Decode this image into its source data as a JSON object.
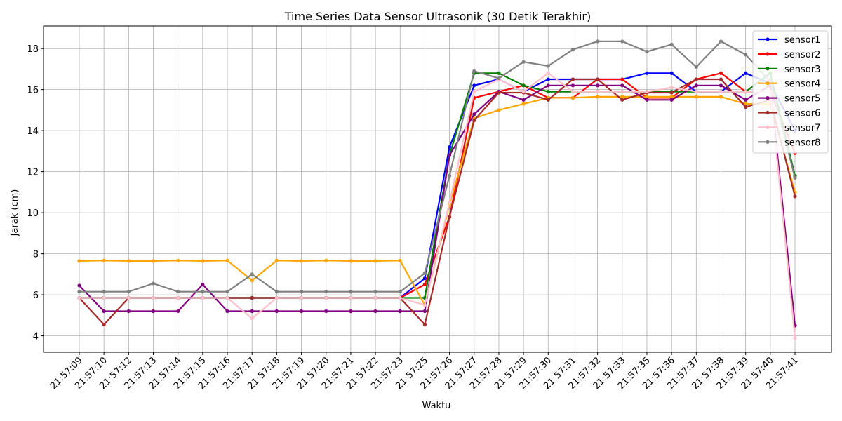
{
  "chart_data": {
    "type": "line",
    "title": "Time Series Data Sensor Ultrasonik (30 Detik Terakhir)",
    "xlabel": "Waktu",
    "ylabel": "Jarak (cm)",
    "ylim": [
      3.2,
      19.1
    ],
    "yticks": [
      4,
      6,
      8,
      10,
      12,
      14,
      16,
      18
    ],
    "grid": true,
    "legend": "top-right",
    "categories": [
      "21:57:09",
      "21:57:10",
      "21:57:12",
      "21:57:13",
      "21:57:14",
      "21:57:15",
      "21:57:16",
      "21:57:17",
      "21:57:18",
      "21:57:19",
      "21:57:20",
      "21:57:21",
      "21:57:22",
      "21:57:23",
      "21:57:25",
      "21:57:26",
      "21:57:27",
      "21:57:28",
      "21:57:29",
      "21:57:30",
      "21:57:31",
      "21:57:32",
      "21:57:33",
      "21:57:35",
      "21:57:36",
      "21:57:37",
      "21:57:38",
      "21:57:39",
      "21:57:40",
      "21:57:41"
    ],
    "series": [
      {
        "name": "sensor1",
        "color": "#0000ff",
        "values": [
          5.85,
          5.85,
          5.85,
          5.85,
          5.85,
          5.85,
          5.85,
          5.85,
          5.85,
          5.85,
          5.85,
          5.85,
          5.85,
          5.85,
          6.8,
          13.2,
          16.2,
          16.5,
          15.9,
          16.5,
          16.5,
          16.5,
          16.5,
          16.8,
          16.8,
          15.9,
          15.9,
          16.8,
          16.3,
          14.0
        ]
      },
      {
        "name": "sensor2",
        "color": "#ff0000",
        "values": [
          5.85,
          5.85,
          5.85,
          5.85,
          5.85,
          5.85,
          5.85,
          5.85,
          5.85,
          5.85,
          5.85,
          5.85,
          5.85,
          5.85,
          6.5,
          9.8,
          15.6,
          15.9,
          16.2,
          15.6,
          15.6,
          16.5,
          16.5,
          15.6,
          15.6,
          16.5,
          16.8,
          15.9,
          15.9,
          12.9
        ]
      },
      {
        "name": "sensor3",
        "color": "#008000",
        "values": [
          5.85,
          5.85,
          5.85,
          5.85,
          5.85,
          5.85,
          5.85,
          5.85,
          5.85,
          5.85,
          5.85,
          5.85,
          5.85,
          5.85,
          5.85,
          12.8,
          16.8,
          16.8,
          16.2,
          15.9,
          15.9,
          15.9,
          15.9,
          15.9,
          15.9,
          15.9,
          15.9,
          15.9,
          16.8,
          11.8
        ]
      },
      {
        "name": "sensor4",
        "color": "#ffa500",
        "values": [
          7.65,
          7.67,
          7.65,
          7.65,
          7.67,
          7.65,
          7.67,
          6.7,
          7.67,
          7.65,
          7.67,
          7.65,
          7.65,
          7.67,
          5.5,
          10.4,
          14.6,
          15.0,
          15.3,
          15.6,
          15.6,
          15.65,
          15.65,
          15.65,
          15.65,
          15.65,
          15.65,
          15.3,
          15.3,
          11.0
        ]
      },
      {
        "name": "sensor5",
        "color": "#800080",
        "values": [
          6.45,
          5.2,
          5.2,
          5.2,
          5.2,
          6.5,
          5.2,
          5.2,
          5.2,
          5.2,
          5.2,
          5.2,
          5.2,
          5.2,
          5.2,
          12.8,
          14.8,
          15.9,
          15.5,
          16.2,
          16.2,
          16.2,
          16.2,
          15.5,
          15.5,
          16.2,
          16.2,
          15.5,
          16.2,
          4.5
        ]
      },
      {
        "name": "sensor6",
        "color": "#a52a2a",
        "values": [
          5.85,
          4.55,
          5.85,
          5.85,
          5.85,
          5.85,
          5.85,
          5.85,
          5.85,
          5.85,
          5.85,
          5.85,
          5.85,
          5.85,
          4.55,
          9.8,
          14.5,
          15.85,
          15.85,
          15.5,
          16.5,
          16.5,
          15.5,
          15.85,
          15.85,
          16.5,
          16.5,
          15.15,
          15.5,
          10.8
        ]
      },
      {
        "name": "sensor7",
        "color": "#ffc0cb",
        "values": [
          5.85,
          5.85,
          5.85,
          5.85,
          5.85,
          5.85,
          5.85,
          4.85,
          5.85,
          5.85,
          5.85,
          5.85,
          5.85,
          5.85,
          5.5,
          10.5,
          15.9,
          16.5,
          15.9,
          16.8,
          15.9,
          15.9,
          15.9,
          15.9,
          16.1,
          15.9,
          15.9,
          15.9,
          15.9,
          3.9
        ]
      },
      {
        "name": "sensor8",
        "color": "#808080",
        "values": [
          6.15,
          6.15,
          6.15,
          6.55,
          6.15,
          6.15,
          6.15,
          7.0,
          6.15,
          6.15,
          6.15,
          6.15,
          6.15,
          6.15,
          7.05,
          11.8,
          16.9,
          16.55,
          17.35,
          17.15,
          17.95,
          18.35,
          18.35,
          17.85,
          18.2,
          17.1,
          18.35,
          17.7,
          16.4,
          11.7
        ]
      }
    ]
  }
}
